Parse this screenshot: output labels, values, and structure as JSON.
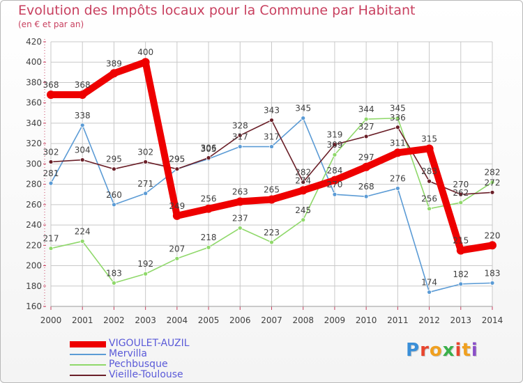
{
  "header": {
    "title": "Evolution des Impôts locaux pour la Commune par Habitant",
    "subtitle": "(en € et par an)"
  },
  "colors": {
    "title": "#c8405f",
    "grid": "#c8c8c8",
    "axis_text": "#404040",
    "legend_text": "#5a5ad8"
  },
  "logo": {
    "text": "Proxiti"
  },
  "chart_data": {
    "type": "line",
    "title": "Evolution des Impôts locaux pour la Commune par Habitant",
    "subtitle": "(en € et par an)",
    "xlabel": "",
    "ylabel": "",
    "x": [
      "2000",
      "2001",
      "2002",
      "2003",
      "2004",
      "2005",
      "2006",
      "2007",
      "2008",
      "2009",
      "2010",
      "2011",
      "2012",
      "2013",
      "2014"
    ],
    "ylim": [
      160,
      420
    ],
    "yticks": [
      160,
      180,
      200,
      220,
      240,
      260,
      280,
      300,
      320,
      340,
      360,
      380,
      400,
      420
    ],
    "grid": true,
    "legend_position": "bottom-left",
    "series": [
      {
        "name": "VIGOULET-AUZIL",
        "color": "#ee0000",
        "values": [
          368,
          368,
          389,
          400,
          249,
          256,
          263,
          265,
          274,
          284,
          297,
          311,
          315,
          215,
          220
        ]
      },
      {
        "name": "Mervilla",
        "color": "#5b9bd5",
        "values": [
          281,
          338,
          260,
          271,
          295,
          305,
          317,
          317,
          345,
          270,
          268,
          276,
          174,
          182,
          183
        ]
      },
      {
        "name": "Pechbusque",
        "color": "#8fd86a",
        "values": [
          217,
          224,
          183,
          192,
          207,
          218,
          237,
          223,
          245,
          309,
          344,
          345,
          256,
          262,
          282
        ]
      },
      {
        "name": "Vieille-Toulouse",
        "color": "#6a1f28",
        "values": [
          302,
          304,
          295,
          302,
          295,
          306,
          328,
          343,
          282,
          319,
          327,
          336,
          283,
          270,
          272
        ]
      }
    ]
  }
}
